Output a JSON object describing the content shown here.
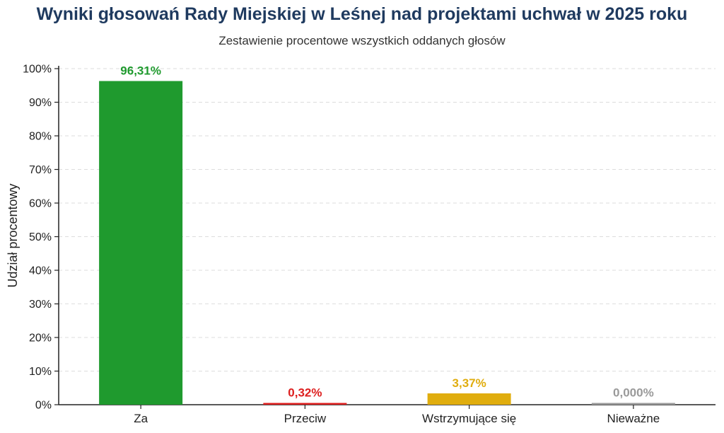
{
  "chart_data": {
    "type": "bar",
    "title": "Wyniki głosowań Rady Miejskiej w Leśnej nad projektami uchwał w 2025 roku",
    "subtitle": "Zestawienie procentowe wszystkich oddanych głosów",
    "ylabel": "Udział procentowy",
    "xlabel": "",
    "ylim": [
      0,
      100
    ],
    "yticks": [
      "0%",
      "10%",
      "20%",
      "30%",
      "40%",
      "50%",
      "60%",
      "70%",
      "80%",
      "90%",
      "100%"
    ],
    "grid": true,
    "categories": [
      "Za",
      "Przeciw",
      "Wstrzymujące się",
      "Nieważne"
    ],
    "values": [
      96.31,
      0.32,
      3.37,
      0.0
    ],
    "value_labels": [
      "96,31%",
      "0,32%",
      "3,37%",
      "0,000%"
    ],
    "colors": [
      "#1f9a2e",
      "#dd1f1f",
      "#e0ad0e",
      "#9a9a9a"
    ]
  }
}
